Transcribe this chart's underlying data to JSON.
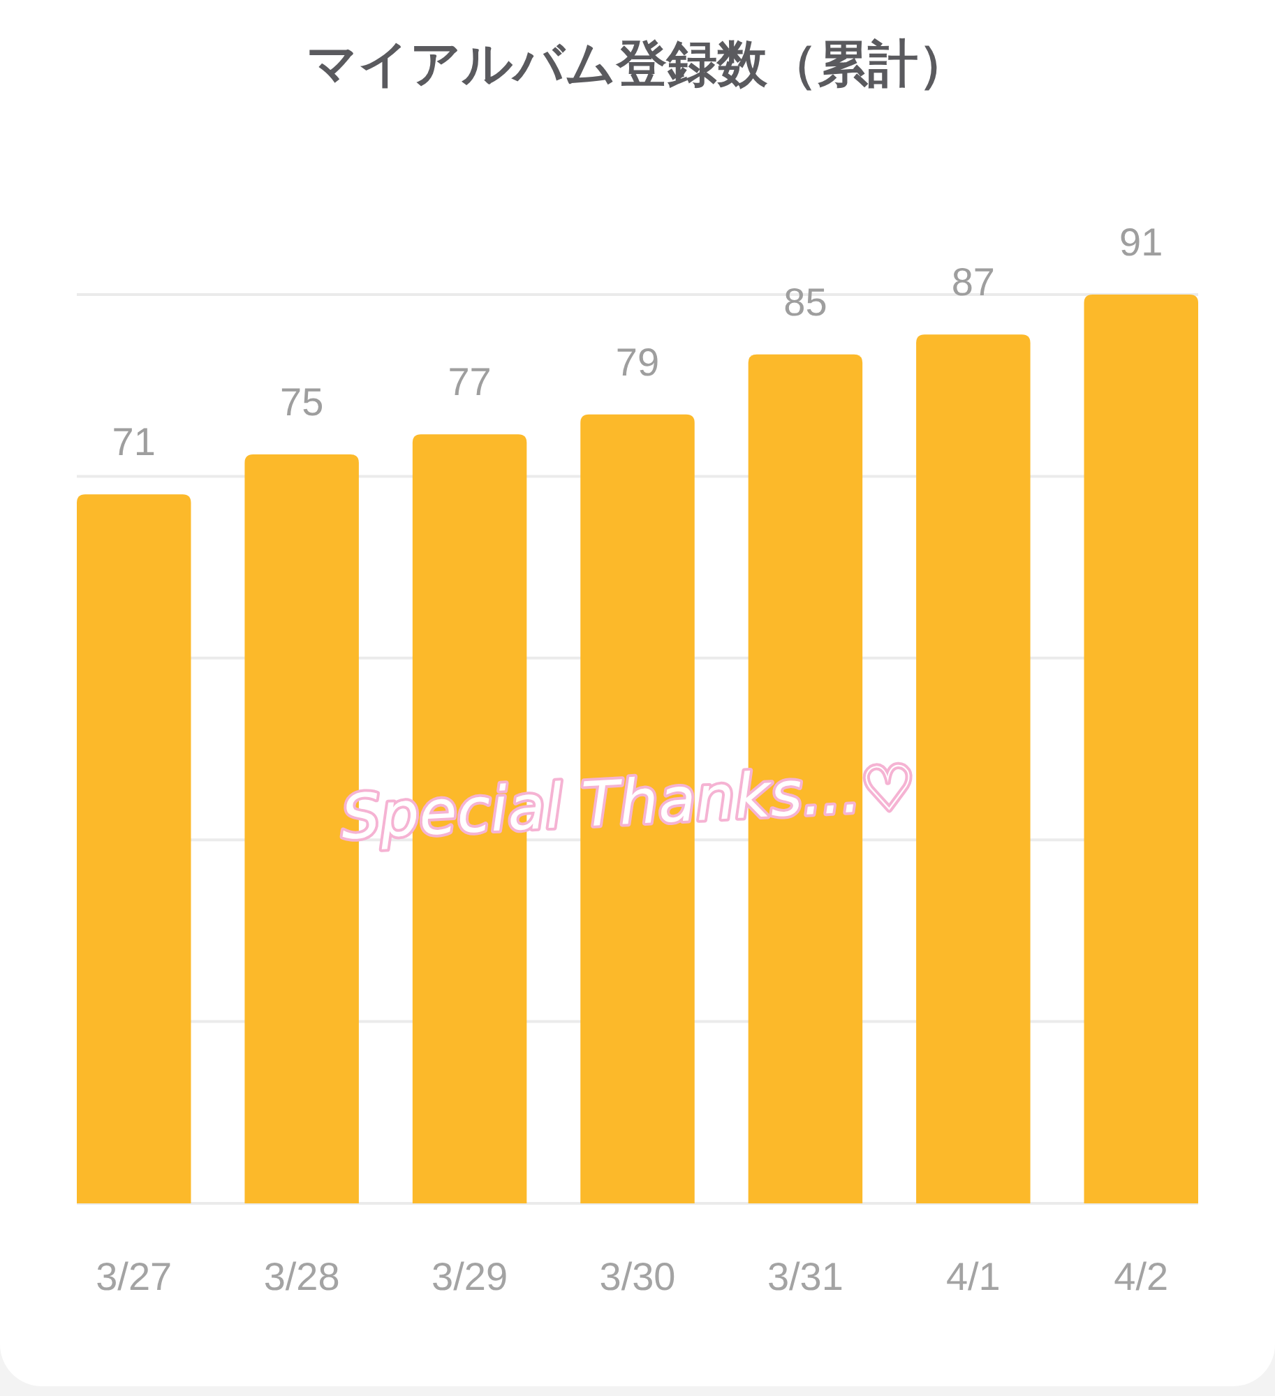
{
  "chart_data": {
    "type": "bar",
    "title": "マイアルバム登録数（累計）",
    "categories": [
      "3/27",
      "3/28",
      "3/29",
      "3/30",
      "3/31",
      "4/1",
      "4/2"
    ],
    "values": [
      71,
      75,
      77,
      79,
      85,
      87,
      91
    ],
    "color": "#fcb92a",
    "ylim": [
      0,
      91
    ],
    "yticks": [
      {
        "value": 0,
        "label": null
      },
      {
        "value": 18.2,
        "label": null
      },
      {
        "value": 36.4,
        "label": null
      },
      {
        "value": 54.6,
        "label": null
      },
      {
        "value": 72.8,
        "label": null
      },
      {
        "value": 91,
        "label": null
      }
    ],
    "grid": "y",
    "data_labels": true,
    "tick_labels": "x",
    "annotations": [
      "Special Thanks...♡"
    ]
  }
}
